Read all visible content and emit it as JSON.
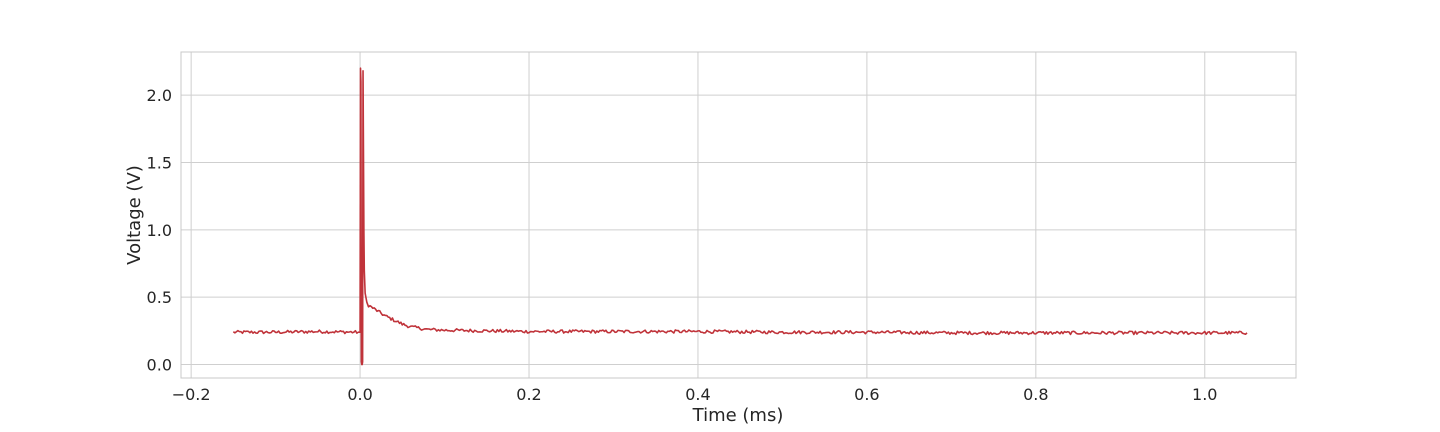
{
  "chart_data": {
    "type": "line",
    "title": "",
    "xlabel": "Time (ms)",
    "ylabel": "Voltage (V)",
    "xlim": [
      -0.212,
      1.108
    ],
    "ylim": [
      -0.1,
      2.32
    ],
    "xticks": [
      -0.2,
      0.0,
      0.2,
      0.4,
      0.6,
      0.8,
      1.0
    ],
    "xtick_labels": [
      "−0.2",
      "0.0",
      "0.2",
      "0.4",
      "0.6",
      "0.8",
      "1.0"
    ],
    "yticks": [
      0.0,
      0.5,
      1.0,
      1.5,
      2.0
    ],
    "ytick_labels": [
      "0.0",
      "0.5",
      "1.0",
      "1.5",
      "2.0"
    ],
    "grid": true,
    "series": [
      {
        "color": "#c0333a",
        "x": [
          -0.15,
          -0.1,
          -0.05,
          -0.002,
          0.0,
          0.0005,
          0.001,
          0.0015,
          0.002,
          0.0025,
          0.003,
          0.0035,
          0.004,
          0.0045,
          0.005,
          0.006,
          0.008,
          0.01,
          0.015,
          0.02,
          0.03,
          0.04,
          0.05,
          0.06,
          0.08,
          0.1,
          0.15,
          0.2,
          0.3,
          0.4,
          0.5,
          0.6,
          0.7,
          0.8,
          0.9,
          1.0,
          1.05
        ],
        "y": [
          0.24,
          0.24,
          0.245,
          0.24,
          0.24,
          2.2,
          2.1,
          0.02,
          0.0,
          0.0,
          0.02,
          2.18,
          1.6,
          1.0,
          0.7,
          0.52,
          0.46,
          0.44,
          0.42,
          0.4,
          0.36,
          0.33,
          0.3,
          0.28,
          0.26,
          0.255,
          0.25,
          0.245,
          0.245,
          0.245,
          0.24,
          0.24,
          0.235,
          0.235,
          0.235,
          0.235,
          0.235
        ],
        "noise": 0.012
      }
    ]
  }
}
